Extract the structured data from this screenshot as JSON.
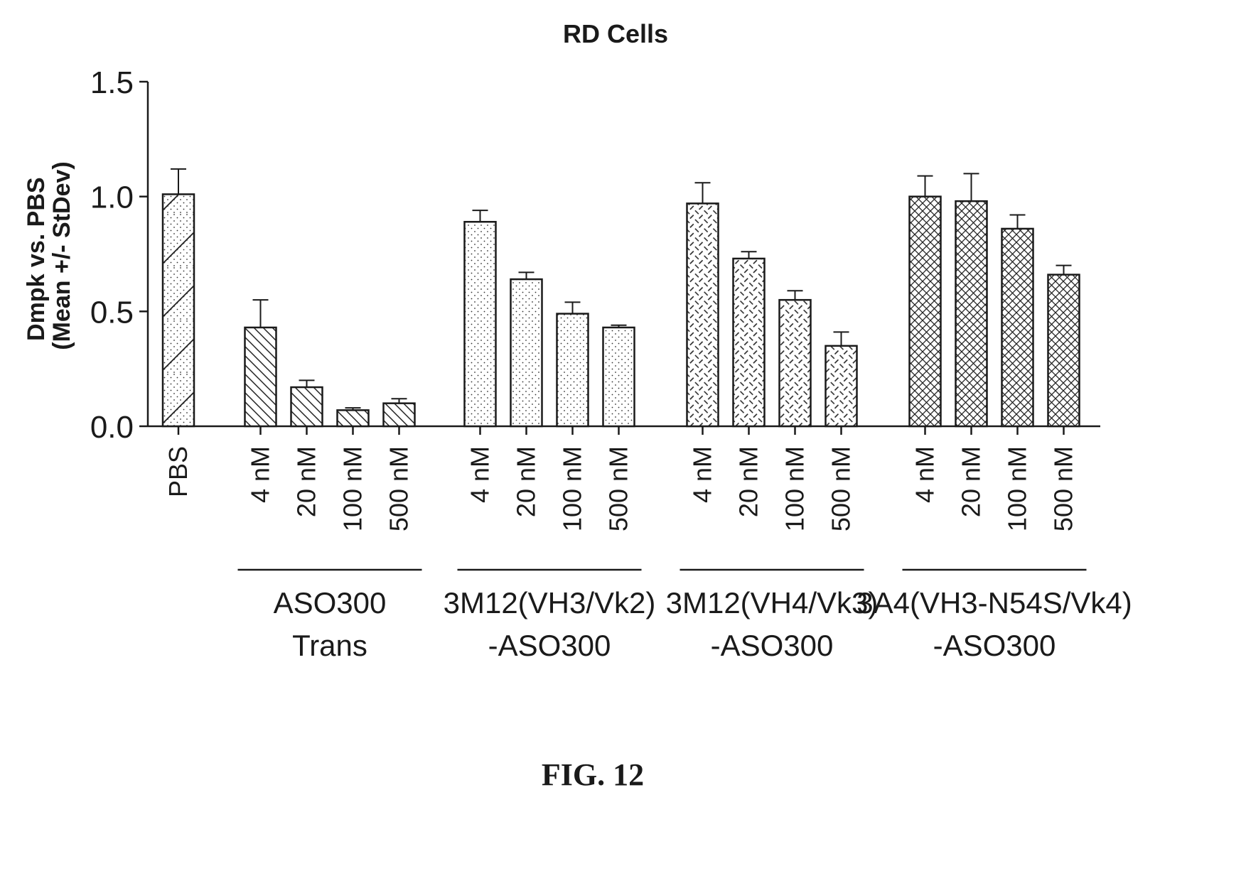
{
  "figure_label": "FIG. 12",
  "chart_data": {
    "type": "bar",
    "title": "RD Cells",
    "ylabel_line1": "Dmpk vs. PBS",
    "ylabel_line2": "(Mean +/- StDev)",
    "ylim": [
      0,
      1.5
    ],
    "yticks": [
      "0.0",
      "0.5",
      "1.0",
      "1.5"
    ],
    "error_bars": "standard deviation",
    "groups": [
      {
        "label_lines": [],
        "pattern": "dots-diagonal",
        "bars": [
          {
            "category": "PBS",
            "value": 1.01,
            "error": 0.11
          }
        ]
      },
      {
        "label_lines": [
          "ASO300",
          "Trans"
        ],
        "pattern": "diagonal",
        "bars": [
          {
            "category": "4 nM",
            "value": 0.43,
            "error": 0.12
          },
          {
            "category": "20 nM",
            "value": 0.17,
            "error": 0.03
          },
          {
            "category": "100 nM",
            "value": 0.07,
            "error": 0.01
          },
          {
            "category": "500 nM",
            "value": 0.1,
            "error": 0.02
          }
        ]
      },
      {
        "label_lines": [
          "3M12(VH3/Vk2)",
          "-ASO300"
        ],
        "pattern": "dots",
        "bars": [
          {
            "category": "4 nM",
            "value": 0.89,
            "error": 0.05
          },
          {
            "category": "20 nM",
            "value": 0.64,
            "error": 0.03
          },
          {
            "category": "100 nM",
            "value": 0.49,
            "error": 0.05
          },
          {
            "category": "500 nM",
            "value": 0.43,
            "error": 0.01
          }
        ]
      },
      {
        "label_lines": [
          "3M12(VH4/Vk3)",
          "-ASO300"
        ],
        "pattern": "dashes",
        "bars": [
          {
            "category": "4 nM",
            "value": 0.97,
            "error": 0.09
          },
          {
            "category": "20 nM",
            "value": 0.73,
            "error": 0.03
          },
          {
            "category": "100 nM",
            "value": 0.55,
            "error": 0.04
          },
          {
            "category": "500 nM",
            "value": 0.35,
            "error": 0.06
          }
        ]
      },
      {
        "label_lines": [
          "3A4(VH3-N54S/Vk4)",
          "-ASO300"
        ],
        "pattern": "crosshatch",
        "bars": [
          {
            "category": "4 nM",
            "value": 1.0,
            "error": 0.09
          },
          {
            "category": "20 nM",
            "value": 0.98,
            "error": 0.12
          },
          {
            "category": "100 nM",
            "value": 0.86,
            "error": 0.06
          },
          {
            "category": "500 nM",
            "value": 0.66,
            "error": 0.04
          }
        ]
      }
    ]
  }
}
